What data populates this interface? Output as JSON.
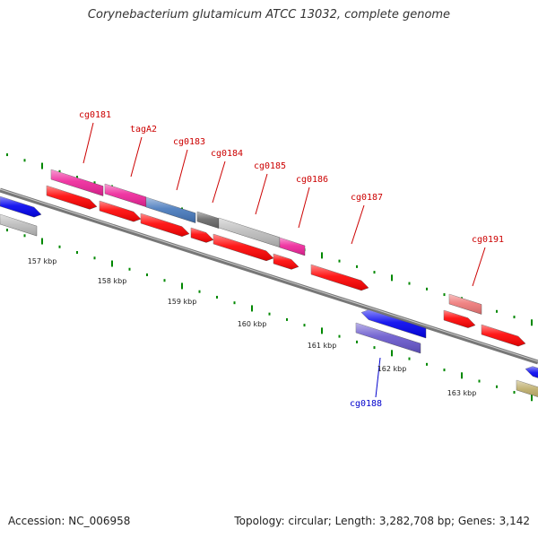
{
  "title": "Corynebacterium glutamicum ATCC 13032, complete genome",
  "footer": {
    "accession": "Accession: NC_006958",
    "summary": "Topology: circular; Length: 3,282,708 bp; Genes: 3,142"
  },
  "scale_labels": [
    "157 kbp",
    "158 kbp",
    "159 kbp",
    "160 kbp",
    "161 kbp",
    "162 kbp",
    "163 kbp"
  ],
  "gene_labels": [
    {
      "text": "cg0181",
      "color": "#cc0000"
    },
    {
      "text": "tagA2",
      "color": "#cc0000"
    },
    {
      "text": "cg0183",
      "color": "#cc0000"
    },
    {
      "text": "cg0184",
      "color": "#cc0000"
    },
    {
      "text": "cg0185",
      "color": "#cc0000"
    },
    {
      "text": "cg0186",
      "color": "#cc0000"
    },
    {
      "text": "cg0187",
      "color": "#cc0000"
    },
    {
      "text": "cg0191",
      "color": "#cc0000"
    },
    {
      "text": "cg0188",
      "color": "#0000cc"
    }
  ],
  "colors": {
    "backbone": "#777777",
    "tick": "#008800",
    "cds": "#ff0000",
    "magenta": "#ee2299",
    "steelblue": "#4477bb",
    "darkgray": "#666666",
    "lightgray": "#bbbbbb",
    "blue": "#0000ee",
    "purple": "#6655cc",
    "salmon": "#ee7777",
    "olive": "#bbaa66"
  }
}
